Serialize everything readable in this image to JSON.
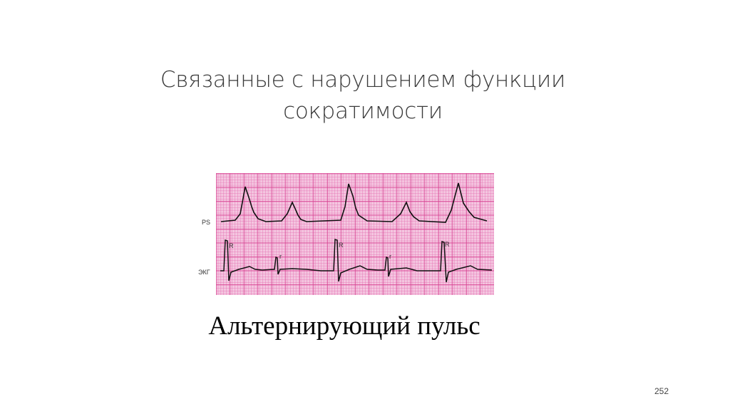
{
  "slide": {
    "title_lines": [
      "Связанные с нарушением функции",
      "сократимости"
    ],
    "subtitle": "Альтернирующий пульс",
    "page_number": "252"
  },
  "figure": {
    "grid_color": "#e0509e",
    "trace_labels": {
      "pulse": "PS",
      "ecg": "ЭКГ"
    },
    "beat_labels": [
      "R",
      "r",
      "R",
      "r",
      "R"
    ]
  }
}
